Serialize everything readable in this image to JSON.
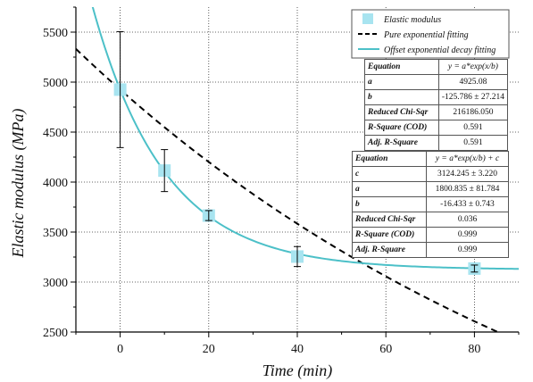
{
  "chart_data": {
    "type": "scatter",
    "xlabel": "Time (min)",
    "ylabel": "Elastic modulus (MPa)",
    "xlim": [
      -10,
      90
    ],
    "ylim": [
      2500,
      5750
    ],
    "x_ticks": [
      0,
      20,
      40,
      60,
      80
    ],
    "y_ticks": [
      2500,
      3000,
      3500,
      4000,
      4500,
      5000,
      5500
    ],
    "grid": true,
    "legend_position": "top-right",
    "series": [
      {
        "name": "Elastic modulus",
        "kind": "markers",
        "color": "#a8e4f0",
        "x": [
          0,
          10,
          20,
          40,
          80
        ],
        "y": [
          4925,
          4115,
          3665,
          3255,
          3135
        ],
        "yerr": [
          580,
          210,
          50,
          100,
          35
        ]
      },
      {
        "name": "Pure exponential fitting",
        "kind": "dashed-line",
        "color": "#000000",
        "equation": "y = a*exp(x/b)",
        "params": {
          "a": 4925.08,
          "b": -125.786
        }
      },
      {
        "name": "Offset exponential decay fitting",
        "kind": "line",
        "color": "#4cc0c8",
        "equation": "y = a*exp(x/b) + c",
        "params": {
          "c": 3124.245,
          "a": 1800.835,
          "b": -16.433
        }
      }
    ]
  },
  "fit_tables": [
    {
      "rows": [
        {
          "key": "Equation",
          "value": "y = a*exp(x/b)"
        },
        {
          "key": "a",
          "value": "4925.08"
        },
        {
          "key": "b",
          "value": "-125.786 ± 27.214"
        },
        {
          "key": "Reduced Chi-Sqr",
          "value": "216186.050"
        },
        {
          "key": "R-Square (COD)",
          "value": "0.591"
        },
        {
          "key": "Adj. R-Square",
          "value": "0.591"
        }
      ]
    },
    {
      "rows": [
        {
          "key": "Equation",
          "value": "y = a*exp(x/b) + c"
        },
        {
          "key": "c",
          "value": "3124.245 ± 3.220"
        },
        {
          "key": "a",
          "value": "1800.835 ± 81.784"
        },
        {
          "key": "b",
          "value": "-16.433 ± 0.743"
        },
        {
          "key": "Reduced Chi-Sqr",
          "value": "0.036"
        },
        {
          "key": "R-Square (COD)",
          "value": "0.999"
        },
        {
          "key": "Adj. R-Square",
          "value": "0.999"
        }
      ]
    }
  ]
}
